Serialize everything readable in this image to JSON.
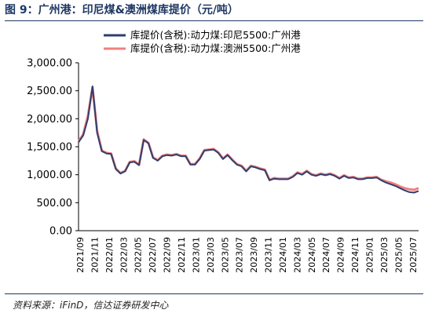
{
  "figure": {
    "title": "图 9：广州港：印尼煤&澳洲煤库提价（元/吨）",
    "source": "资料来源：iFinD，信达证券研发中心"
  },
  "chart_data": {
    "type": "line",
    "title": "",
    "xlabel": "",
    "ylabel": "",
    "ylim": [
      0,
      3000
    ],
    "yticks": [
      "0.00",
      "500.00",
      "1,000.00",
      "1,500.00",
      "2,000.00",
      "2,500.00",
      "3,000.00"
    ],
    "xticks": [
      "2021/09",
      "2021/11",
      "2022/01",
      "2022/03",
      "2022/05",
      "2022/07",
      "2022/09",
      "2022/11",
      "2023/01",
      "2023/03",
      "2023/05",
      "2023/07",
      "2023/09",
      "2023/11",
      "2024/01",
      "2024/03",
      "2024/05",
      "2024/07",
      "2024/09",
      "2024/11",
      "2025/01",
      "2025/03",
      "2025/05",
      "2025/07"
    ],
    "legend_position": "top",
    "grid": false,
    "x": [
      "2021/09",
      "2021/09",
      "2021/10",
      "2021/10",
      "2021/10",
      "2021/11",
      "2021/11",
      "2021/11",
      "2021/12",
      "2021/12",
      "2022/01",
      "2022/01",
      "2022/02",
      "2022/02",
      "2022/03",
      "2022/03",
      "2022/03",
      "2022/04",
      "2022/04",
      "2022/05",
      "2022/05",
      "2022/06",
      "2022/06",
      "2022/07",
      "2022/07",
      "2022/08",
      "2022/08",
      "2022/09",
      "2022/09",
      "2022/10",
      "2022/10",
      "2022/11",
      "2022/11",
      "2022/12",
      "2022/12",
      "2023/01",
      "2023/01",
      "2023/02",
      "2023/02",
      "2023/03",
      "2023/03",
      "2023/04",
      "2023/04",
      "2023/05",
      "2023/05",
      "2023/06",
      "2023/07",
      "2023/08",
      "2023/09",
      "2023/09",
      "2023/10",
      "2023/11",
      "2023/12",
      "2024/01",
      "2024/02",
      "2024/03",
      "2024/03",
      "2024/04",
      "2024/05",
      "2024/06",
      "2024/07",
      "2024/08",
      "2024/09",
      "2024/10",
      "2024/11",
      "2024/12",
      "2025/01",
      "2025/02",
      "2025/03",
      "2025/04",
      "2025/05",
      "2025/06",
      "2025/07",
      "2025/07"
    ],
    "series": [
      {
        "name": "库提价(含税):动力煤:印尼5500:广州港",
        "color": "#2e3f6e",
        "values": [
          1580,
          1700,
          2000,
          2580,
          1750,
          1420,
          1380,
          1370,
          1100,
          1020,
          1060,
          1220,
          1230,
          1170,
          1620,
          1560,
          1300,
          1250,
          1330,
          1350,
          1340,
          1360,
          1330,
          1330,
          1180,
          1180,
          1280,
          1430,
          1440,
          1450,
          1390,
          1280,
          1350,
          1260,
          1180,
          1150,
          1060,
          1150,
          1130,
          1100,
          1080,
          900,
          930,
          920,
          920,
          920,
          960,
          1030,
          1000,
          1060,
          1000,
          980,
          1010,
          990,
          1010,
          980,
          930,
          980,
          940,
          950,
          920,
          920,
          940,
          940,
          950,
          900,
          860,
          830,
          800,
          760,
          720,
          690,
          680,
          710
        ]
      },
      {
        "name": "库提价(含税):动力煤:澳洲5500:广州港",
        "color": "#f08080",
        "values": [
          1600,
          1720,
          2050,
          2560,
          1780,
          1430,
          1390,
          1380,
          1110,
          1030,
          1070,
          1230,
          1240,
          1180,
          1630,
          1570,
          1310,
          1260,
          1340,
          1360,
          1350,
          1370,
          1340,
          1340,
          1190,
          1190,
          1290,
          1440,
          1450,
          1460,
          1400,
          1290,
          1360,
          1270,
          1190,
          1160,
          1070,
          1160,
          1140,
          1110,
          1090,
          910,
          940,
          930,
          930,
          930,
          970,
          1040,
          1010,
          1070,
          1010,
          990,
          1020,
          1000,
          1020,
          990,
          940,
          990,
          950,
          960,
          930,
          930,
          950,
          950,
          960,
          910,
          880,
          860,
          830,
          790,
          760,
          740,
          730,
          760
        ]
      }
    ]
  }
}
